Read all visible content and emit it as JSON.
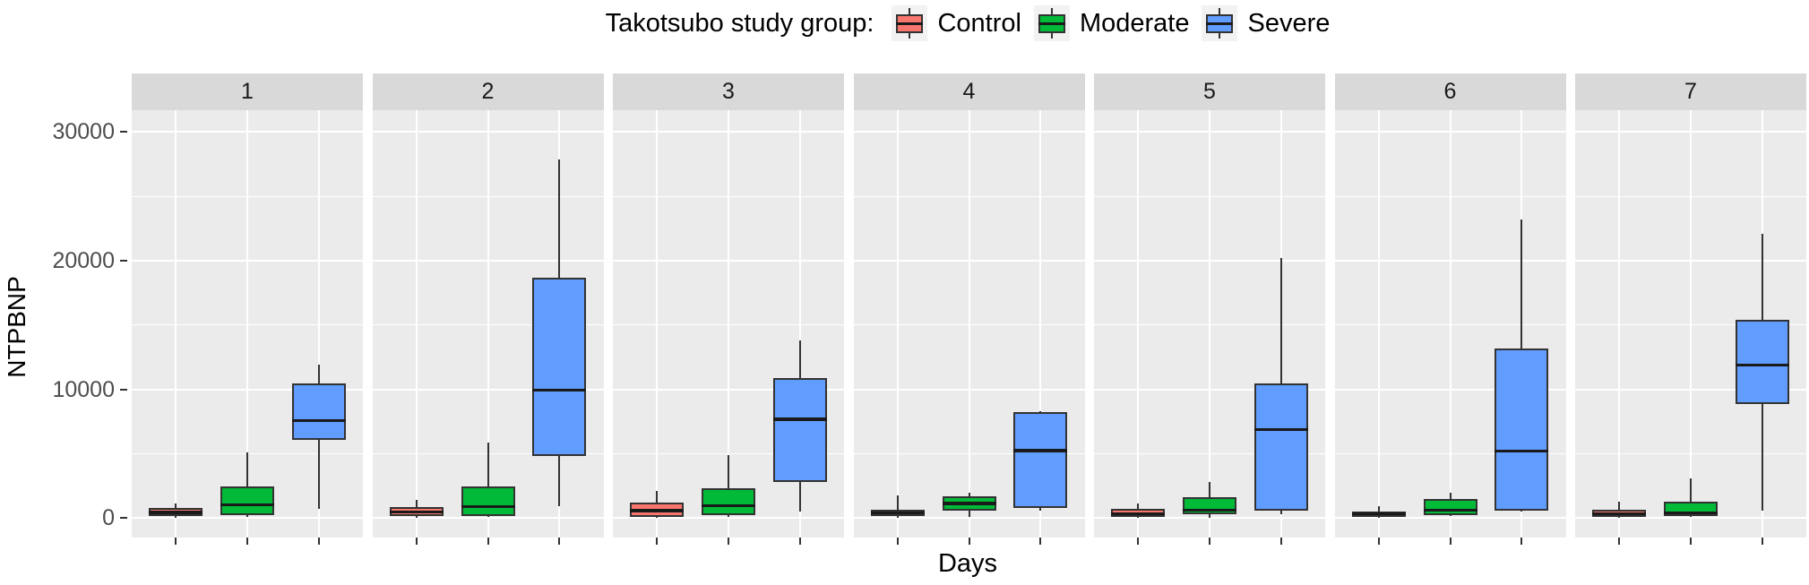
{
  "title": "Takotsubo study group:",
  "ylabel": "NTPBNP",
  "xlabel": "Days",
  "legend": [
    {
      "label": "Control",
      "color": "#F8766D"
    },
    {
      "label": "Moderate",
      "color": "#00BA38"
    },
    {
      "label": "Severe",
      "color": "#619CFF"
    }
  ],
  "y_ticks": [
    {
      "value": 0,
      "label": "0"
    },
    {
      "value": 10000,
      "label": "10000"
    },
    {
      "value": 20000,
      "label": "20000"
    },
    {
      "value": 30000,
      "label": "30000"
    }
  ],
  "y_minor_ticks": [
    5000,
    15000,
    25000
  ],
  "chart_data": {
    "type": "boxplot",
    "title": "Takotsubo study group:",
    "xlabel": "Days",
    "ylabel": "NTPBNP",
    "facet_variable": "Days",
    "facets": [
      "1",
      "2",
      "3",
      "4",
      "5",
      "6",
      "7"
    ],
    "groups": [
      "Control",
      "Moderate",
      "Severe"
    ],
    "ylim": [
      -1500,
      31700
    ],
    "grid": true,
    "legend_position": "top",
    "panel_background": "#EBEBEB",
    "strip_background": "#D9D9D9",
    "series": [
      {
        "name": "Control",
        "color": "#F8766D",
        "boxes": [
          {
            "facet": "1",
            "min": 50,
            "q1": 170,
            "median": 450,
            "q3": 790,
            "max": 1150
          },
          {
            "facet": "2",
            "min": 0,
            "q1": 170,
            "median": 500,
            "q3": 840,
            "max": 1400
          },
          {
            "facet": "3",
            "min": 0,
            "q1": 100,
            "median": 600,
            "q3": 1200,
            "max": 2100
          },
          {
            "facet": "4",
            "min": 0,
            "q1": 170,
            "median": 400,
            "q3": 650,
            "max": 1800
          },
          {
            "facet": "5",
            "min": 50,
            "q1": 100,
            "median": 350,
            "q3": 700,
            "max": 1150
          },
          {
            "facet": "6",
            "min": 50,
            "q1": 100,
            "median": 330,
            "q3": 550,
            "max": 950
          },
          {
            "facet": "7",
            "min": 50,
            "q1": 100,
            "median": 350,
            "q3": 650,
            "max": 1300
          }
        ]
      },
      {
        "name": "Moderate",
        "color": "#00BA38",
        "boxes": [
          {
            "facet": "1",
            "min": 100,
            "q1": 250,
            "median": 1050,
            "q3": 2450,
            "max": 5100
          },
          {
            "facet": "2",
            "min": 100,
            "q1": 200,
            "median": 900,
            "q3": 2450,
            "max": 5900
          },
          {
            "facet": "3",
            "min": 100,
            "q1": 250,
            "median": 960,
            "q3": 2350,
            "max": 4900
          },
          {
            "facet": "4",
            "min": 120,
            "q1": 600,
            "median": 1150,
            "q3": 1700,
            "max": 2000
          },
          {
            "facet": "5",
            "min": 0,
            "q1": 300,
            "median": 620,
            "q3": 1600,
            "max": 2800
          },
          {
            "facet": "6",
            "min": 150,
            "q1": 250,
            "median": 620,
            "q3": 1500,
            "max": 2000
          },
          {
            "facet": "7",
            "min": 150,
            "q1": 200,
            "median": 400,
            "q3": 1300,
            "max": 3100
          }
        ]
      },
      {
        "name": "Severe",
        "color": "#619CFF",
        "boxes": [
          {
            "facet": "1",
            "min": 700,
            "q1": 6100,
            "median": 7600,
            "q3": 10500,
            "max": 11900
          },
          {
            "facet": "2",
            "min": 950,
            "q1": 4800,
            "median": 9950,
            "q3": 18700,
            "max": 27900
          },
          {
            "facet": "3",
            "min": 500,
            "q1": 2800,
            "median": 7700,
            "q3": 10900,
            "max": 13800
          },
          {
            "facet": "4",
            "min": 600,
            "q1": 800,
            "median": 5250,
            "q3": 8250,
            "max": 8300
          },
          {
            "facet": "5",
            "min": 300,
            "q1": 600,
            "median": 6900,
            "q3": 10500,
            "max": 20200
          },
          {
            "facet": "6",
            "min": 500,
            "q1": 600,
            "median": 5200,
            "q3": 13200,
            "max": 23200
          },
          {
            "facet": "7",
            "min": 600,
            "q1": 8900,
            "median": 11900,
            "q3": 15400,
            "max": 22100
          }
        ]
      }
    ]
  }
}
